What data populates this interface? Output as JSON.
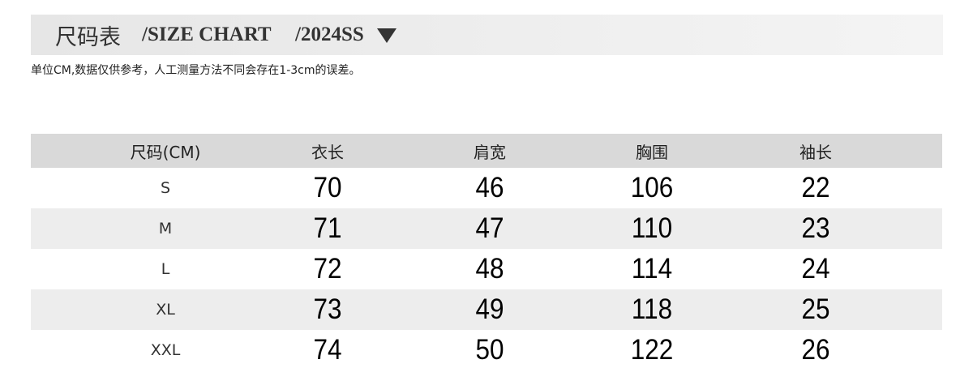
{
  "title": {
    "cn": "尺码表",
    "en": "/SIZE CHART",
    "season": "/2024SS"
  },
  "note": "单位CM,数据仅供参考，人工测量方法不同会存在1-3cm的误差。",
  "table": {
    "headers": [
      "尺码(CM)",
      "衣长",
      "肩宽",
      "胸围",
      "袖长"
    ],
    "rows": [
      [
        "S",
        "70",
        "46",
        "106",
        "22"
      ],
      [
        "M",
        "71",
        "47",
        "110",
        "23"
      ],
      [
        "L",
        "72",
        "48",
        "114",
        "24"
      ],
      [
        "XL",
        "73",
        "49",
        "118",
        "25"
      ],
      [
        "XXL",
        "74",
        "50",
        "122",
        "26"
      ]
    ]
  }
}
